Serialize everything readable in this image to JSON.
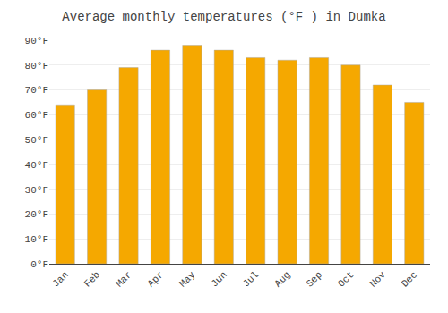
{
  "chart_data": {
    "type": "bar",
    "title": "Average monthly temperatures (°F ) in Dumka",
    "categories": [
      "Jan",
      "Feb",
      "Mar",
      "Apr",
      "May",
      "Jun",
      "Jul",
      "Aug",
      "Sep",
      "Oct",
      "Nov",
      "Dec"
    ],
    "values": [
      64,
      70,
      79,
      86,
      88,
      86,
      83,
      82,
      83,
      80,
      72,
      65
    ],
    "color": "#F5A800",
    "ylim": [
      0,
      90
    ],
    "yticks": [
      {
        "value": 0,
        "label": "0°F"
      },
      {
        "value": 10,
        "label": "10°F"
      },
      {
        "value": 20,
        "label": "20°F"
      },
      {
        "value": 30,
        "label": "30°F"
      },
      {
        "value": 40,
        "label": "40°F"
      },
      {
        "value": 50,
        "label": "50°F"
      },
      {
        "value": 60,
        "label": "60°F"
      },
      {
        "value": 70,
        "label": "70°F"
      },
      {
        "value": 80,
        "label": "80°F"
      },
      {
        "value": 90,
        "label": "90°F"
      }
    ],
    "grid": true
  }
}
